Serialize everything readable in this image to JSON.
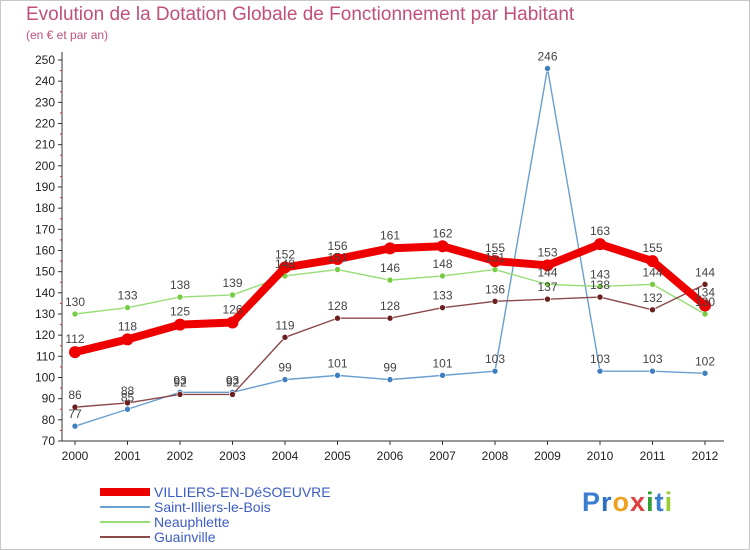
{
  "chart_data": {
    "type": "line",
    "title": "Evolution de la Dotation Globale de Fonctionnement par Habitant",
    "subtitle": "(en € et par an)",
    "xlabel": "",
    "ylabel": "",
    "ylim": [
      70,
      250
    ],
    "ytick_step": 10,
    "grid": false,
    "legend_position": "bottom-left",
    "x": [
      "2000",
      "2001",
      "2002",
      "2003",
      "2004",
      "2005",
      "2006",
      "2007",
      "2008",
      "2009",
      "2010",
      "2011",
      "2012"
    ],
    "series": [
      {
        "name": "Saint-Illiers-le-Bois",
        "color": "#6a9fcf",
        "marker": "#3e7fbf",
        "width": 1.4,
        "values": [
          77,
          85,
          93,
          93,
          99,
          101,
          99,
          101,
          103,
          246,
          103,
          103,
          102
        ],
        "labels": [
          "77",
          "85",
          "93",
          "93",
          "99",
          "101",
          "99",
          "101",
          "103",
          "246",
          "103",
          "103",
          "102"
        ]
      },
      {
        "name": "Neauphlette",
        "color": "#99dd77",
        "marker": "#77cc44",
        "width": 1.4,
        "values": [
          130,
          133,
          138,
          139,
          148,
          151,
          146,
          148,
          151,
          144,
          143,
          144,
          130
        ],
        "labels": [
          "130",
          "133",
          "138",
          "139",
          "148",
          "151",
          "146",
          "148",
          "151",
          "144",
          "143",
          "144",
          "130"
        ]
      },
      {
        "name": "Guainville",
        "color": "#8b4a4a",
        "marker": "#6b1f1f",
        "width": 1.4,
        "values": [
          86,
          88,
          92,
          92,
          119,
          128,
          128,
          133,
          136,
          137,
          138,
          132,
          144
        ],
        "labels": [
          "86",
          "88",
          "92",
          "92",
          "119",
          "128",
          "128",
          "133",
          "136",
          "137",
          "138",
          "132",
          "144"
        ]
      },
      {
        "name": "VILLIERS-EN-DéSOEUVRE",
        "color": "#ee0000",
        "marker": "#ee0000",
        "width": 8,
        "values": [
          112,
          118,
          125,
          126,
          152,
          156,
          161,
          162,
          155,
          153,
          163,
          155,
          134
        ],
        "labels": [
          "112",
          "118",
          "125",
          "126",
          "152",
          "156",
          "161",
          "162",
          "155",
          "153",
          "163",
          "155",
          "134"
        ]
      }
    ]
  },
  "legend": {
    "items": [
      {
        "label": "VILLIERS-EN-DéSOEUVRE",
        "color": "#ee0000",
        "thickness": 8
      },
      {
        "label": "Saint-Illiers-le-Bois",
        "color": "#6a9fcf",
        "thickness": 2
      },
      {
        "label": "Neauphlette",
        "color": "#99dd77",
        "thickness": 2
      },
      {
        "label": "Guainville",
        "color": "#8b4a4a",
        "thickness": 2
      }
    ]
  },
  "logo": {
    "letters": [
      "P",
      "r",
      "o",
      "x",
      "i",
      "t",
      "i"
    ],
    "colors": [
      "#3a7ecf",
      "#2f6fbf",
      "#f0a020",
      "#e04040",
      "#30a030",
      "#3a7ecf",
      "#9acd32"
    ]
  }
}
